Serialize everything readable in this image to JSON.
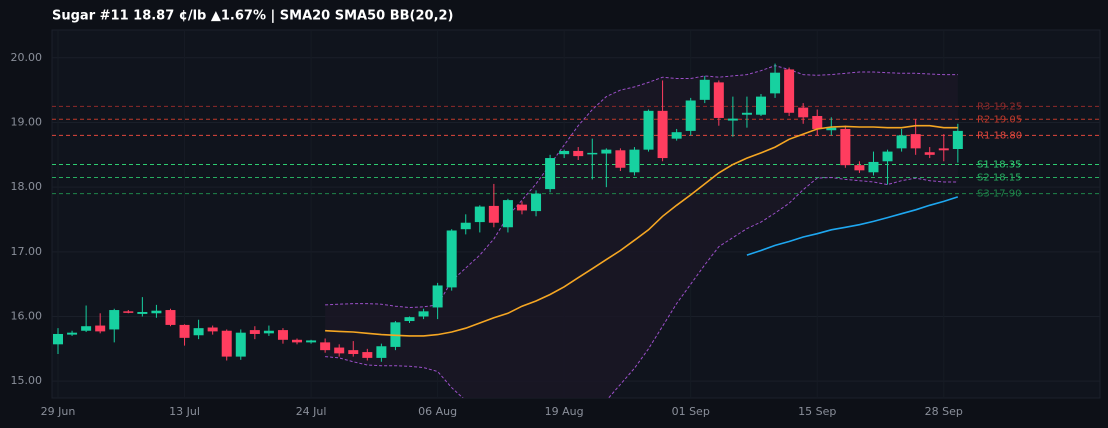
{
  "chart_data": {
    "type": "candlestick",
    "title": "Sugar #11  18.87 ¢/lb  ▲1.67%  |  SMA20  SMA50  BB(20,2)",
    "categories": [
      "29 Jun",
      null,
      null,
      null,
      null,
      null,
      null,
      null,
      null,
      "13 Jul",
      null,
      null,
      null,
      null,
      null,
      null,
      null,
      null,
      "24 Jul",
      null,
      null,
      null,
      null,
      null,
      null,
      null,
      null,
      "06 Aug",
      null,
      null,
      null,
      null,
      null,
      null,
      null,
      null,
      "19 Aug",
      null,
      null,
      null,
      null,
      null,
      null,
      null,
      null,
      "01 Sep",
      null,
      null,
      null,
      null,
      null,
      null,
      null,
      null,
      "15 Sep",
      null,
      null,
      null,
      null,
      null,
      null,
      null,
      null,
      "28 Sep",
      null
    ],
    "open": [
      15.57,
      15.72,
      15.78,
      15.86,
      15.8,
      16.08,
      16.04,
      16.05,
      16.1,
      15.87,
      15.71,
      15.83,
      15.78,
      15.38,
      15.79,
      15.74,
      15.79,
      15.64,
      15.6,
      15.6,
      15.52,
      15.48,
      15.45,
      15.36,
      15.53,
      15.93,
      16.0,
      16.14,
      16.45,
      17.35,
      17.46,
      17.71,
      17.38,
      17.73,
      17.63,
      17.97,
      18.51,
      18.56,
      18.51,
      18.52,
      18.57,
      18.23,
      18.58,
      19.18,
      18.75,
      18.87,
      19.35,
      19.62,
      19.03,
      19.12,
      19.12,
      19.45,
      19.82,
      19.23,
      19.1,
      18.88,
      18.9,
      18.34,
      18.23,
      18.4,
      18.6,
      18.82,
      18.54,
      18.6,
      18.59
    ],
    "high": [
      15.82,
      15.78,
      16.17,
      16.05,
      16.12,
      16.1,
      16.3,
      16.18,
      16.12,
      15.88,
      15.95,
      15.86,
      15.8,
      15.8,
      15.85,
      15.86,
      15.82,
      15.66,
      15.64,
      15.66,
      15.57,
      15.62,
      15.5,
      15.58,
      15.93,
      16.0,
      16.12,
      16.52,
      17.35,
      17.58,
      17.72,
      18.05,
      17.82,
      17.78,
      17.95,
      18.5,
      18.58,
      18.62,
      18.75,
      18.6,
      18.6,
      18.62,
      19.2,
      19.65,
      18.9,
      19.38,
      19.72,
      19.65,
      19.4,
      19.4,
      19.44,
      19.91,
      19.85,
      19.3,
      19.2,
      19.08,
      18.95,
      18.4,
      18.55,
      18.58,
      18.9,
      19.05,
      18.62,
      18.82,
      18.98
    ],
    "low": [
      15.42,
      15.7,
      15.76,
      15.74,
      15.6,
      16.05,
      16.0,
      15.98,
      15.85,
      15.55,
      15.65,
      15.72,
      15.32,
      15.33,
      15.65,
      15.7,
      15.58,
      15.57,
      15.58,
      15.44,
      15.38,
      15.38,
      15.32,
      15.3,
      15.48,
      15.9,
      15.96,
      15.96,
      16.4,
      17.27,
      17.3,
      17.38,
      17.3,
      17.58,
      17.55,
      17.92,
      18.45,
      18.42,
      18.12,
      18.0,
      18.25,
      18.18,
      18.55,
      18.4,
      18.72,
      18.8,
      19.3,
      18.95,
      18.78,
      18.92,
      19.1,
      19.38,
      19.1,
      18.98,
      18.8,
      18.8,
      18.3,
      18.22,
      18.18,
      18.04,
      18.55,
      18.5,
      18.45,
      18.4,
      18.38
    ],
    "close": [
      15.73,
      15.75,
      15.85,
      15.77,
      16.1,
      16.06,
      16.07,
      16.09,
      15.87,
      15.67,
      15.82,
      15.77,
      15.38,
      15.75,
      15.73,
      15.78,
      15.64,
      15.6,
      15.63,
      15.48,
      15.43,
      15.42,
      15.36,
      15.54,
      15.91,
      15.99,
      16.08,
      16.48,
      17.33,
      17.45,
      17.7,
      17.45,
      17.8,
      17.64,
      17.9,
      18.45,
      18.56,
      18.48,
      18.53,
      18.58,
      18.3,
      18.58,
      19.18,
      18.45,
      18.85,
      19.34,
      19.66,
      19.07,
      19.06,
      19.15,
      19.4,
      19.77,
      19.15,
      19.08,
      18.9,
      18.92,
      18.34,
      18.26,
      18.39,
      18.55,
      18.8,
      18.6,
      18.5,
      18.57,
      18.87
    ],
    "up_color": "#17d1a0",
    "down_color": "#ff3d5f",
    "sma20": {
      "color": "#f5a623",
      "values": [
        null,
        null,
        null,
        null,
        null,
        null,
        null,
        null,
        null,
        null,
        null,
        null,
        null,
        null,
        null,
        null,
        null,
        null,
        null,
        15.78,
        15.77,
        15.76,
        15.74,
        15.72,
        15.71,
        15.7,
        15.7,
        15.72,
        15.76,
        15.82,
        15.9,
        15.98,
        16.05,
        16.16,
        16.24,
        16.34,
        16.46,
        16.6,
        16.74,
        16.88,
        17.02,
        17.18,
        17.34,
        17.55,
        17.72,
        17.88,
        18.05,
        18.22,
        18.35,
        18.45,
        18.53,
        18.62,
        18.74,
        18.82,
        18.9,
        18.93,
        18.94,
        18.93,
        18.93,
        18.92,
        18.92,
        18.95,
        18.95,
        18.92,
        18.92
      ]
    },
    "sma50": {
      "color": "#1ea7f0",
      "values": [
        null,
        null,
        null,
        null,
        null,
        null,
        null,
        null,
        null,
        null,
        null,
        null,
        null,
        null,
        null,
        null,
        null,
        null,
        null,
        null,
        null,
        null,
        null,
        null,
        null,
        null,
        null,
        null,
        null,
        null,
        null,
        null,
        null,
        null,
        null,
        null,
        null,
        null,
        null,
        null,
        null,
        null,
        null,
        null,
        null,
        null,
        null,
        null,
        null,
        16.95,
        17.02,
        17.1,
        17.16,
        17.23,
        17.28,
        17.34,
        17.38,
        17.42,
        17.47,
        17.53,
        17.59,
        17.65,
        17.72,
        17.78,
        17.85
      ]
    },
    "bollinger": {
      "color": "#9b4fc8",
      "upper": [
        null,
        null,
        null,
        null,
        null,
        null,
        null,
        null,
        null,
        null,
        null,
        null,
        null,
        null,
        null,
        null,
        null,
        null,
        null,
        16.18,
        16.19,
        16.2,
        16.2,
        16.19,
        16.16,
        16.14,
        16.15,
        16.18,
        16.55,
        16.75,
        16.95,
        17.2,
        17.55,
        17.8,
        18.05,
        18.35,
        18.65,
        18.95,
        19.2,
        19.4,
        19.5,
        19.55,
        19.62,
        19.7,
        19.68,
        19.68,
        19.72,
        19.7,
        19.72,
        19.74,
        19.8,
        19.88,
        19.82,
        19.74,
        19.73,
        19.74,
        19.76,
        19.78,
        19.78,
        19.77,
        19.76,
        19.76,
        19.75,
        19.74,
        19.74
      ],
      "lower": [
        null,
        null,
        null,
        null,
        null,
        null,
        null,
        null,
        null,
        null,
        null,
        null,
        null,
        null,
        null,
        null,
        null,
        null,
        null,
        15.38,
        15.36,
        15.3,
        15.25,
        15.24,
        15.24,
        15.23,
        15.21,
        15.15,
        14.9,
        14.7,
        14.55,
        14.4,
        14.25,
        14.15,
        14.1,
        14.08,
        14.12,
        14.25,
        14.45,
        14.7,
        14.95,
        15.2,
        15.5,
        15.85,
        16.2,
        16.5,
        16.8,
        17.08,
        17.22,
        17.36,
        17.46,
        17.6,
        17.75,
        17.96,
        18.14,
        18.15,
        18.12,
        18.1,
        18.08,
        18.04,
        18.1,
        18.14,
        18.1,
        18.08,
        18.08
      ]
    },
    "levels": [
      {
        "name": "R3",
        "value": 19.25,
        "color": "#8e2a2a"
      },
      {
        "name": "R2",
        "value": 19.05,
        "color": "#c0392b"
      },
      {
        "name": "R1",
        "value": 18.8,
        "label": "18.80",
        "color": "#e0463c"
      },
      {
        "name": "S1",
        "value": 18.35,
        "color": "#2ecc71"
      },
      {
        "name": "S2",
        "value": 18.15,
        "color": "#27ae60"
      },
      {
        "name": "S3",
        "value": 17.9,
        "label": "17.90",
        "color": "#1e8449"
      }
    ],
    "ylim": [
      14.74,
      20.43
    ],
    "yticks": [
      {
        "value": 15,
        "label": "15.00"
      },
      {
        "value": 16,
        "label": "16.00"
      },
      {
        "value": 17,
        "label": "17.00"
      },
      {
        "value": 18,
        "label": "18.00"
      },
      {
        "value": 19,
        "label": "19.00"
      },
      {
        "value": 20,
        "label": "20.00"
      }
    ],
    "grid": true
  }
}
